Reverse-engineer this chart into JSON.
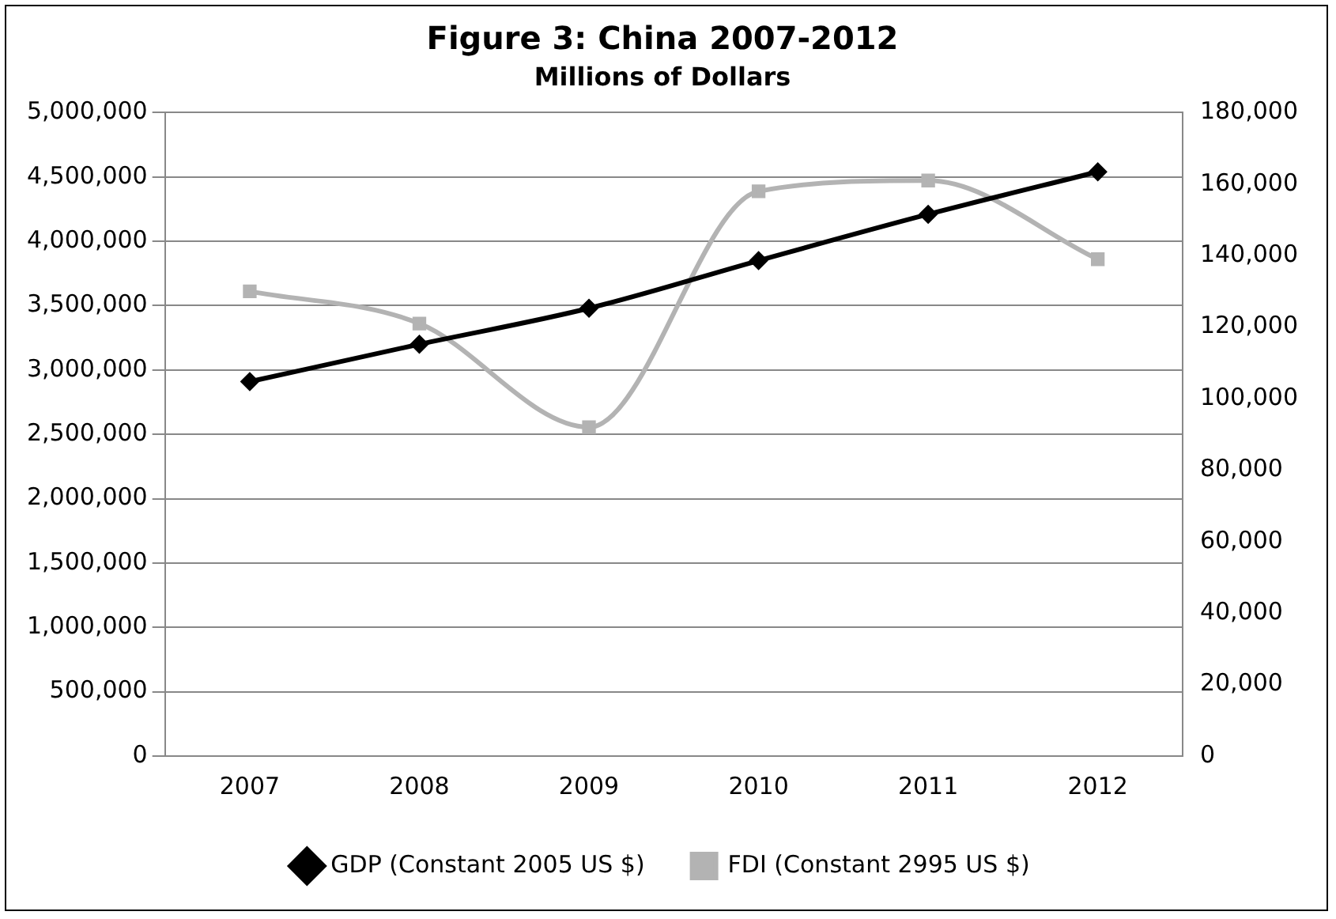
{
  "chart_data": {
    "type": "line",
    "title": "Figure 3: China 2007-2012",
    "subtitle": "Millions of Dollars",
    "categories": [
      "2007",
      "2008",
      "2009",
      "2010",
      "2011",
      "2012"
    ],
    "series": [
      {
        "name": "GDP (Constant 2005 US $)",
        "color": "#000000",
        "values": [
          2910000,
          3200000,
          3480000,
          3850000,
          4210000,
          4540000
        ],
        "marker": "diamond"
      },
      {
        "name": "FDI (Constant 2995 US $)",
        "color": "#b3b3b3",
        "values": [
          130000,
          121000,
          92000,
          158000,
          161000,
          139000
        ],
        "marker": "square",
        "axis": "y2"
      }
    ],
    "ylim": [
      0,
      5000000
    ],
    "yticks": [
      0,
      {
        "value": 500000,
        "label": "500,000"
      },
      {
        "value": 1000000,
        "label": "1,000,000"
      },
      {
        "value": 1500000,
        "label": "1,500,000"
      },
      {
        "value": 2000000,
        "label": "2,000,000"
      },
      {
        "value": 2500000,
        "label": "2,500,000"
      },
      {
        "value": 3000000,
        "label": "3,000,000"
      },
      {
        "value": 3500000,
        "label": "3,500,000"
      },
      {
        "value": 4000000,
        "label": "4,000,000"
      },
      {
        "value": 4500000,
        "label": "4,500,000"
      },
      {
        "value": 5000000,
        "label": "5,000,000"
      }
    ],
    "y2lim": [
      0,
      180000
    ],
    "y2ticks": [
      0,
      {
        "value": 20000,
        "label": "20,000"
      },
      {
        "value": 40000,
        "label": "40,000"
      },
      {
        "value": 60000,
        "label": "60,000"
      },
      {
        "value": 80000,
        "label": "80,000"
      },
      {
        "value": 100000,
        "label": "100,000"
      },
      {
        "value": 120000,
        "label": "120,000"
      },
      {
        "value": 140000,
        "label": "140,000"
      },
      {
        "value": 160000,
        "label": "160,000"
      },
      {
        "value": 180000,
        "label": "180,000"
      }
    ],
    "grid": "y",
    "legend": "bottom"
  }
}
